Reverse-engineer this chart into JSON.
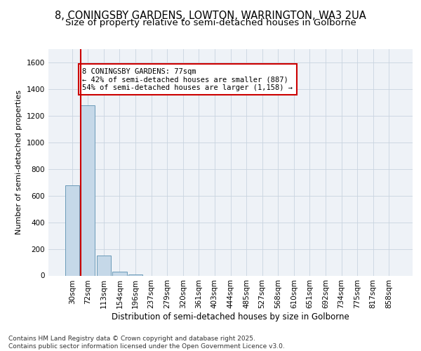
{
  "title1": "8, CONINGSBY GARDENS, LOWTON, WARRINGTON, WA3 2UA",
  "title2": "Size of property relative to semi-detached houses in Golborne",
  "xlabel": "Distribution of semi-detached houses by size in Golborne",
  "ylabel": "Number of semi-detached properties",
  "categories": [
    "30sqm",
    "72sqm",
    "113sqm",
    "154sqm",
    "196sqm",
    "237sqm",
    "279sqm",
    "320sqm",
    "361sqm",
    "403sqm",
    "444sqm",
    "485sqm",
    "527sqm",
    "568sqm",
    "610sqm",
    "651sqm",
    "692sqm",
    "734sqm",
    "775sqm",
    "817sqm",
    "858sqm"
  ],
  "values": [
    680,
    1280,
    150,
    30,
    10,
    0,
    0,
    0,
    0,
    0,
    0,
    0,
    0,
    0,
    0,
    0,
    0,
    0,
    0,
    0,
    0
  ],
  "bar_color": "#c5d8e8",
  "bar_edge_color": "#6a9ab8",
  "red_line_color": "#cc0000",
  "annotation_text": "8 CONINGSBY GARDENS: 77sqm\n← 42% of semi-detached houses are smaller (887)\n54% of semi-detached houses are larger (1,158) →",
  "ylim": [
    0,
    1700
  ],
  "yticks": [
    0,
    200,
    400,
    600,
    800,
    1000,
    1200,
    1400,
    1600
  ],
  "footer": "Contains HM Land Registry data © Crown copyright and database right 2025.\nContains public sector information licensed under the Open Government Licence v3.0.",
  "bg_color": "#eef2f7",
  "grid_color": "#c8d4e0",
  "title1_fontsize": 10.5,
  "title2_fontsize": 9.5,
  "tick_fontsize": 7.5,
  "ylabel_fontsize": 8,
  "xlabel_fontsize": 8.5,
  "footer_fontsize": 6.5,
  "annot_fontsize": 7.5
}
